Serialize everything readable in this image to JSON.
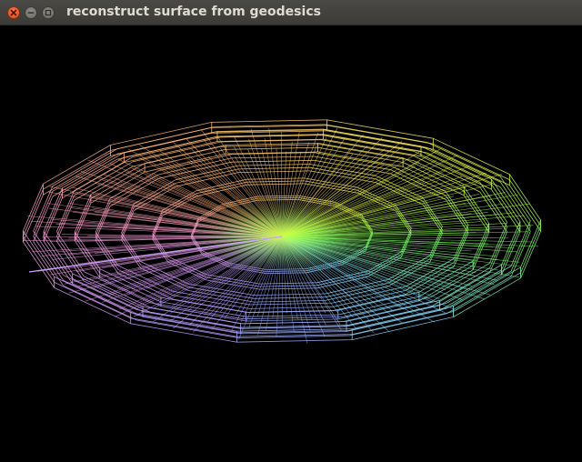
{
  "window": {
    "title": "reconstruct surface from geodesics",
    "controls": [
      "close",
      "minimize",
      "maximize"
    ]
  },
  "viewport": {
    "background": "#000000",
    "render_mode": "wireframe",
    "palette": [
      "#ffb070",
      "#ffd070",
      "#e8ff40",
      "#80ff60",
      "#80e8ff",
      "#a0a0ff",
      "#e0a0ff",
      "#ffa0d0"
    ]
  }
}
